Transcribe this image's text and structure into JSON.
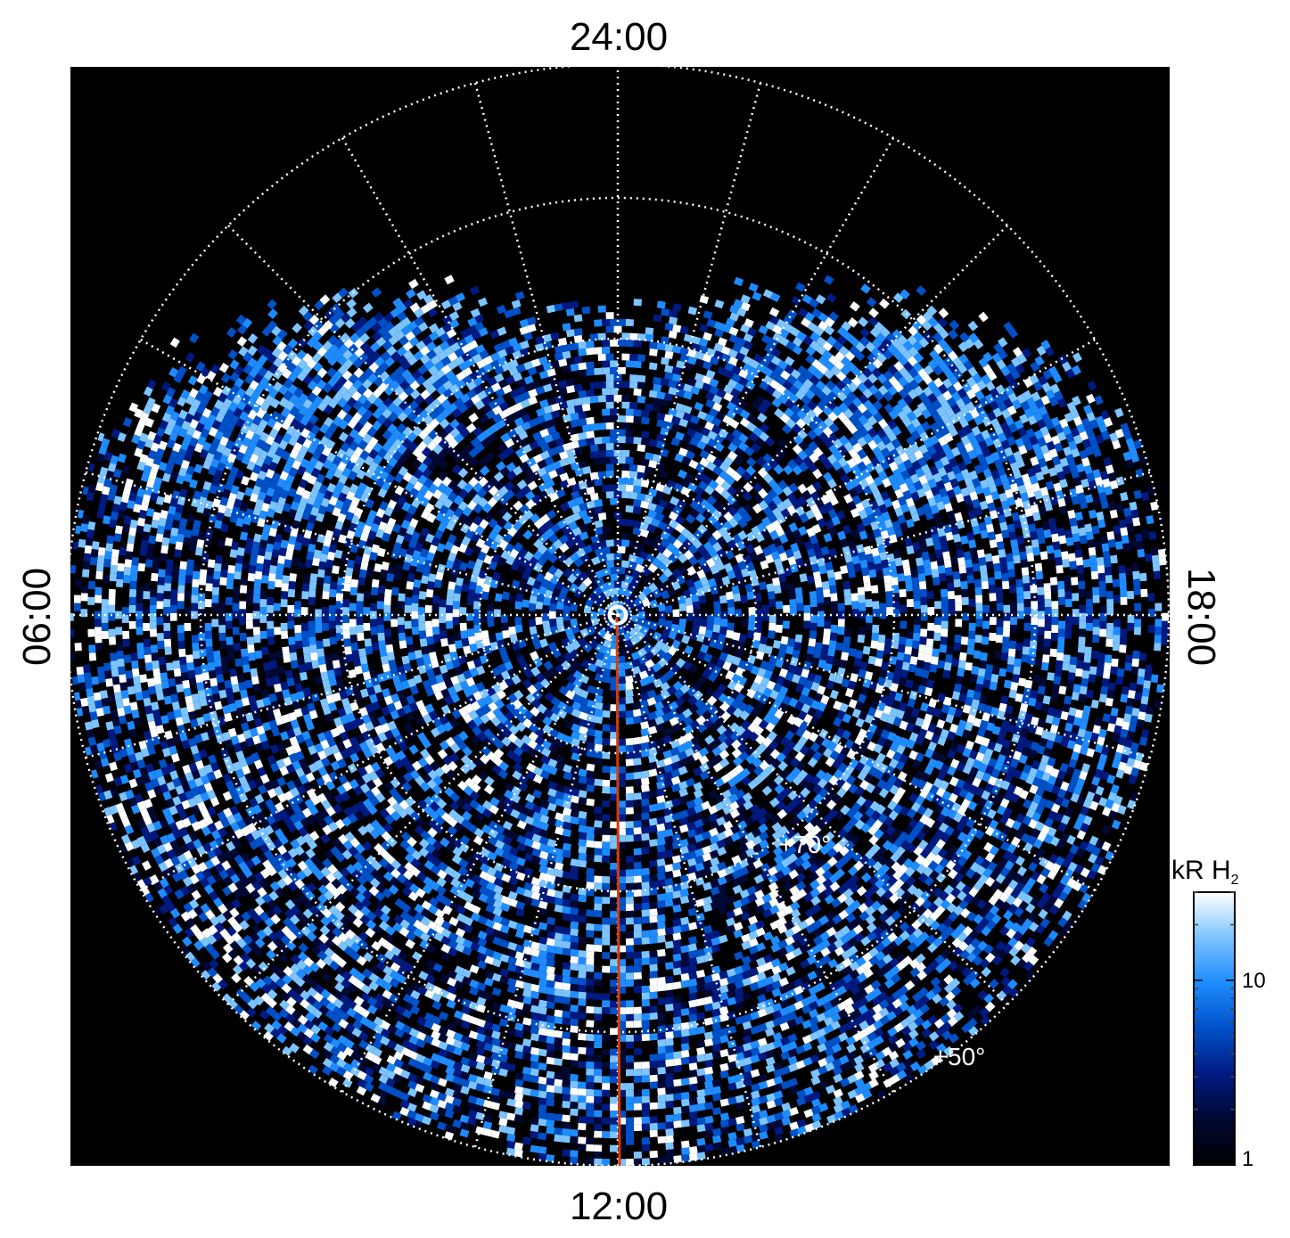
{
  "chart_data": {
    "type": "heatmap",
    "projection": "polar (north-pole-centred, magnetic local time vs latitude)",
    "mlt_labels": {
      "top": "24:00",
      "bottom": "12:00",
      "left": "06:00",
      "right": "18:00"
    },
    "latitude_labels": [
      "+70°",
      "+50°"
    ],
    "colorbar": {
      "title": "kR H",
      "title_subscript": "2",
      "tick_labels": [
        "1",
        "10"
      ],
      "scale": "log",
      "colormap": [
        "#000000",
        "#000833",
        "#001a80",
        "#0050c8",
        "#1e8cff",
        "#7cc4ff",
        "#ffffff"
      ]
    },
    "colors": {
      "background": "#000000",
      "grid": "#ffffff",
      "meridian_line": "#d63a0a",
      "pole_marker": "#ffffff"
    }
  }
}
